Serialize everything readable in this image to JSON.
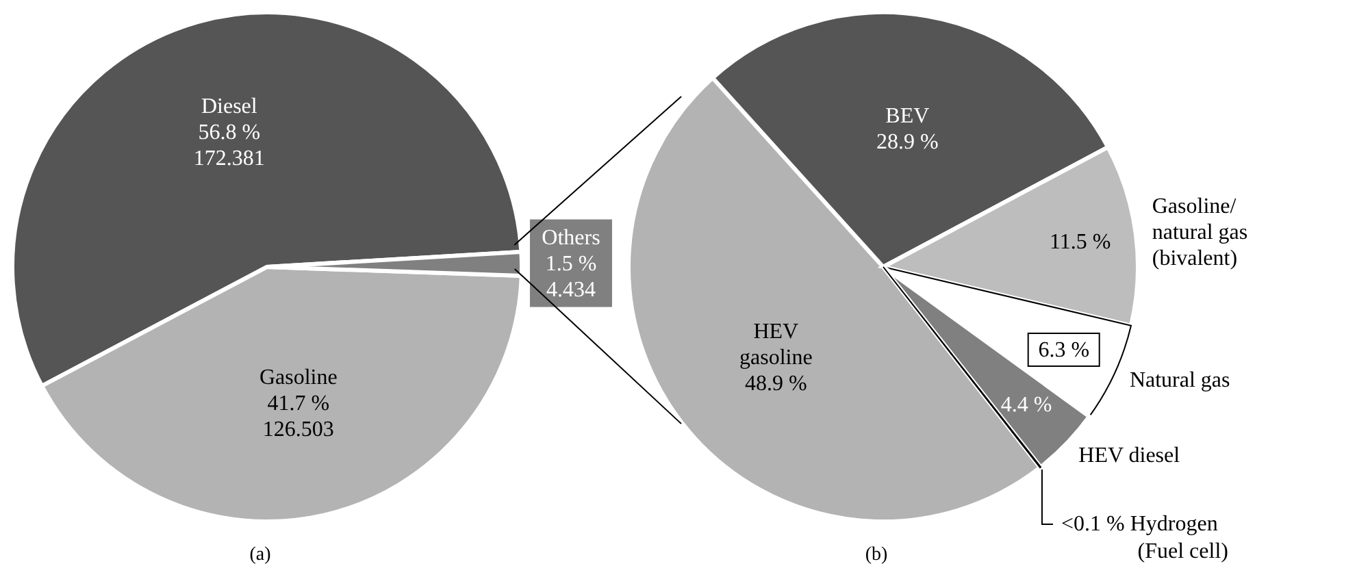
{
  "chart_data": [
    {
      "type": "pie",
      "title": "(a)",
      "categories": [
        "Diesel",
        "Gasoline",
        "Others"
      ],
      "values": [
        56.8,
        41.7,
        1.5
      ],
      "colors": [
        "#555555",
        "#b3b3b3",
        "#808080"
      ],
      "value_labels": [
        "56.8 %\n172.381",
        "41.7 %\n126.503",
        "1.5 %\n4.434"
      ]
    },
    {
      "type": "pie",
      "title": "(b)",
      "categories": [
        "HEV gasoline",
        "BEV",
        "Gasoline/natural gas (bivalent)",
        "Natural gas",
        "HEV diesel",
        "Hydrogen (Fuel cell)"
      ],
      "values": [
        48.9,
        28.9,
        11.5,
        6.3,
        4.4,
        0.05
      ],
      "colors": [
        "#b3b3b3",
        "#555555",
        "#bdbdbd",
        "#ffffff",
        "#808080",
        "#ffffff"
      ],
      "value_labels": [
        "48.9 %",
        "28.9 %",
        "11.5 %",
        "6.3 %",
        "4.4 %",
        "<0.1 %"
      ]
    }
  ]
}
